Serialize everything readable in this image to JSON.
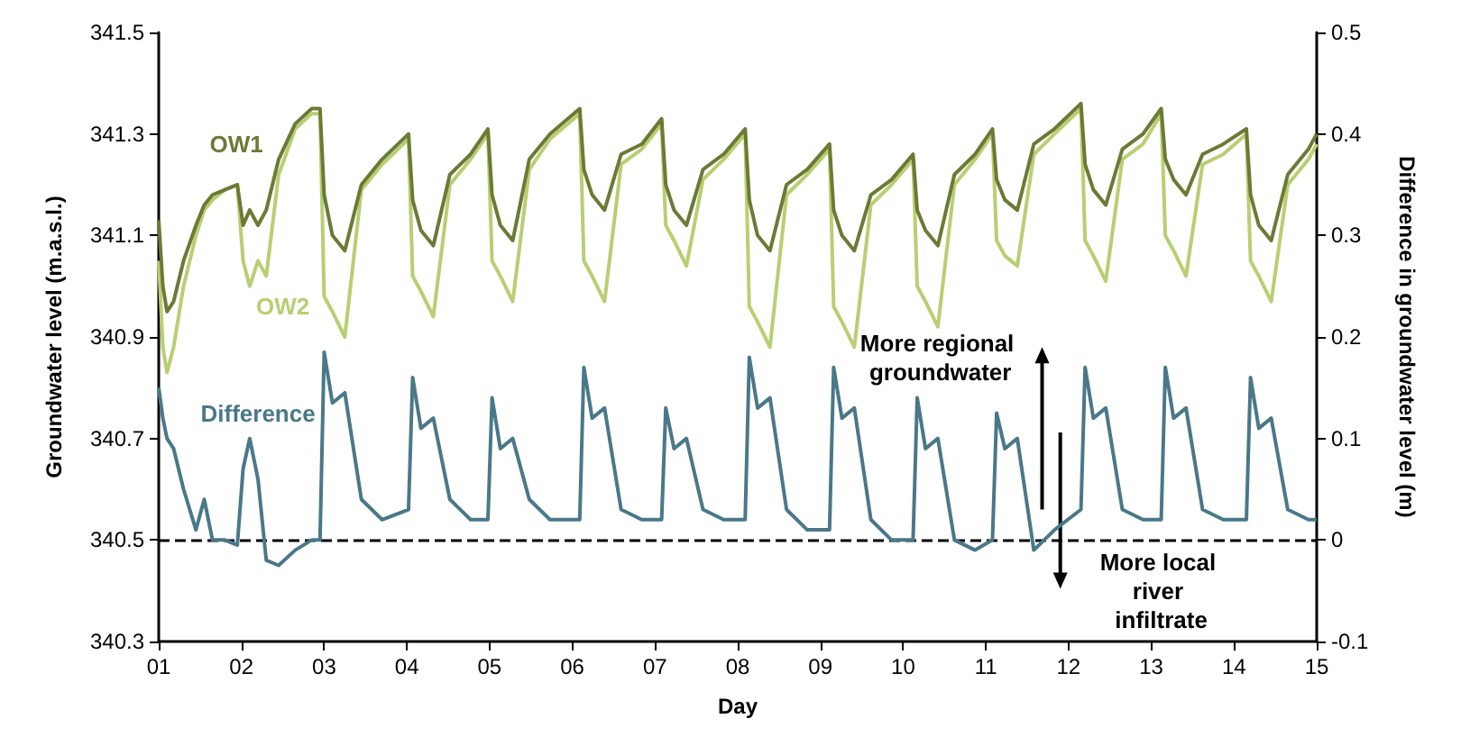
{
  "chart_data": {
    "type": "line",
    "xlabel": "Day",
    "ylabel": "Groundwater level (m.a.s.l.)",
    "y2label": "Difference in groundwater level (m)",
    "x": [
      1.0,
      1.05,
      1.1,
      1.18,
      1.3,
      1.45,
      1.55,
      1.65,
      1.8,
      1.95,
      2.02,
      2.1,
      2.2,
      2.3,
      2.45,
      2.65,
      2.85,
      2.95,
      3.0,
      3.1,
      3.25,
      3.45,
      3.7,
      4.02,
      4.07,
      4.17,
      4.32,
      4.52,
      4.77,
      4.98,
      5.03,
      5.13,
      5.28,
      5.48,
      5.73,
      6.09,
      6.14,
      6.24,
      6.39,
      6.59,
      6.84,
      7.08,
      7.13,
      7.23,
      7.38,
      7.58,
      7.83,
      8.09,
      8.14,
      8.24,
      8.39,
      8.59,
      8.84,
      9.11,
      9.16,
      9.26,
      9.41,
      9.61,
      9.86,
      10.12,
      10.17,
      10.27,
      10.42,
      10.62,
      10.87,
      11.08,
      11.13,
      11.23,
      11.38,
      11.58,
      11.83,
      12.15,
      12.2,
      12.3,
      12.45,
      12.65,
      12.9,
      13.12,
      13.17,
      13.27,
      13.42,
      13.62,
      13.87,
      14.15,
      14.2,
      14.3,
      14.45,
      14.65,
      14.9,
      15.0
    ],
    "series": [
      {
        "name": "OW1",
        "color": "#6b7a35",
        "values": [
          341.13,
          341.0,
          340.95,
          340.97,
          341.05,
          341.12,
          341.16,
          341.18,
          341.19,
          341.2,
          341.12,
          341.15,
          341.12,
          341.15,
          341.25,
          341.32,
          341.35,
          341.35,
          341.18,
          341.1,
          341.07,
          341.2,
          341.25,
          341.3,
          341.17,
          341.11,
          341.08,
          341.22,
          341.26,
          341.31,
          341.18,
          341.12,
          341.09,
          341.25,
          341.3,
          341.35,
          341.23,
          341.18,
          341.15,
          341.26,
          341.28,
          341.33,
          341.2,
          341.15,
          341.12,
          341.23,
          341.26,
          341.31,
          341.17,
          341.1,
          341.07,
          341.2,
          341.23,
          341.28,
          341.15,
          341.1,
          341.07,
          341.18,
          341.21,
          341.26,
          341.15,
          341.11,
          341.08,
          341.22,
          341.26,
          341.31,
          341.21,
          341.17,
          341.15,
          341.28,
          341.31,
          341.36,
          341.24,
          341.19,
          341.16,
          341.27,
          341.3,
          341.35,
          341.25,
          341.21,
          341.18,
          341.26,
          341.28,
          341.31,
          341.18,
          341.12,
          341.09,
          341.22,
          341.27,
          341.3
        ]
      },
      {
        "name": "OW2",
        "color": "#b8cf72",
        "values": [
          341.05,
          340.88,
          340.83,
          340.88,
          341.0,
          341.1,
          341.15,
          341.17,
          341.19,
          341.2,
          341.05,
          341.0,
          341.05,
          341.02,
          341.22,
          341.31,
          341.34,
          341.34,
          340.98,
          340.95,
          340.9,
          341.19,
          341.24,
          341.29,
          341.02,
          340.99,
          340.94,
          341.2,
          341.25,
          341.3,
          341.05,
          341.02,
          340.97,
          341.23,
          341.29,
          341.34,
          341.05,
          341.02,
          340.97,
          341.24,
          341.27,
          341.32,
          341.12,
          341.09,
          341.04,
          341.21,
          341.25,
          341.3,
          340.96,
          340.93,
          340.88,
          341.18,
          341.22,
          341.27,
          340.96,
          340.93,
          340.88,
          341.16,
          341.2,
          341.25,
          341.0,
          340.97,
          340.92,
          341.2,
          341.25,
          341.3,
          341.09,
          341.06,
          341.04,
          341.26,
          341.3,
          341.35,
          341.09,
          341.06,
          341.01,
          341.25,
          341.28,
          341.34,
          341.1,
          341.07,
          341.02,
          341.24,
          341.26,
          341.3,
          341.05,
          341.02,
          340.97,
          341.2,
          341.25,
          341.28
        ]
      },
      {
        "name": "Difference",
        "color": "#4a7888",
        "axis": "y2",
        "values": [
          0.15,
          0.12,
          0.1,
          0.09,
          0.05,
          0.01,
          0.04,
          0.0,
          0.0,
          -0.005,
          0.07,
          0.1,
          0.06,
          -0.02,
          -0.025,
          -0.01,
          0.0,
          0.0,
          0.185,
          0.135,
          0.145,
          0.04,
          0.02,
          0.03,
          0.16,
          0.11,
          0.12,
          0.04,
          0.02,
          0.02,
          0.14,
          0.09,
          0.1,
          0.04,
          0.02,
          0.02,
          0.17,
          0.12,
          0.13,
          0.03,
          0.02,
          0.02,
          0.13,
          0.09,
          0.1,
          0.03,
          0.02,
          0.02,
          0.18,
          0.13,
          0.14,
          0.03,
          0.01,
          0.01,
          0.17,
          0.12,
          0.13,
          0.02,
          0.0,
          0.0,
          0.14,
          0.09,
          0.1,
          0.0,
          -0.01,
          0.0,
          0.125,
          0.09,
          0.1,
          -0.01,
          0.01,
          0.03,
          0.17,
          0.12,
          0.13,
          0.03,
          0.02,
          0.02,
          0.17,
          0.12,
          0.13,
          0.03,
          0.02,
          0.02,
          0.16,
          0.11,
          0.12,
          0.03,
          0.02,
          0.02
        ]
      }
    ],
    "xlim": [
      1,
      15
    ],
    "xticks": [
      {
        "value": 1,
        "label": "01"
      },
      {
        "value": 2,
        "label": "02"
      },
      {
        "value": 3,
        "label": "03"
      },
      {
        "value": 4,
        "label": "04"
      },
      {
        "value": 5,
        "label": "05"
      },
      {
        "value": 6,
        "label": "06"
      },
      {
        "value": 7,
        "label": "07"
      },
      {
        "value": 8,
        "label": "08"
      },
      {
        "value": 9,
        "label": "09"
      },
      {
        "value": 10,
        "label": "10"
      },
      {
        "value": 11,
        "label": "11"
      },
      {
        "value": 12,
        "label": "12"
      },
      {
        "value": 13,
        "label": "13"
      },
      {
        "value": 14,
        "label": "14"
      },
      {
        "value": 15,
        "label": "15"
      }
    ],
    "ylim": [
      340.3,
      341.5
    ],
    "yticks": [
      340.3,
      340.5,
      340.7,
      340.9,
      341.1,
      341.3,
      341.5
    ],
    "y2lim": [
      -0.1,
      0.5
    ],
    "y2ticks": [
      -0.1,
      0,
      0.1,
      0.2,
      0.3,
      0.4,
      0.5
    ],
    "ref_lines": [
      {
        "axis": "y2",
        "value": 0,
        "label": null,
        "color": "#000000",
        "line_style": "dashed"
      }
    ],
    "annotations": [
      "More regional groundwater",
      "More local river infiltrate"
    ],
    "marker": "none",
    "line_style": "solid",
    "grid": false
  }
}
